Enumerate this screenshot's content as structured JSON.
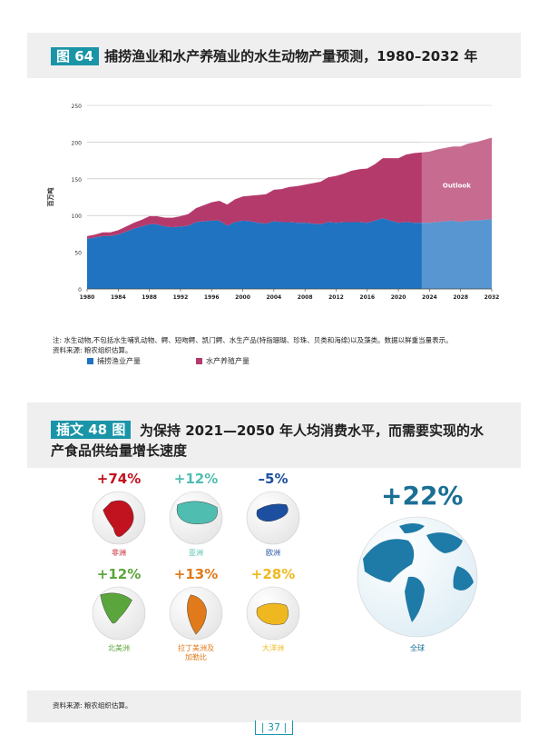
{
  "figure64": {
    "tag": "图 64",
    "title": "捕捞渔业和水产养殖业的水生动物产量预测，1980–2032 年",
    "note": "注: 水生动物,不包括水生哺乳动物、鳄、短吻鳄、凯门鳄、水生产品(特指珊瑚、珍珠、贝类和海绵)以及藻类。数据以鲜重当量表示。",
    "source": "资料来源: 粮农组织估算。"
  },
  "chart_data": {
    "type": "area",
    "title": "捕捞渔业和水产养殖业的水生动物产量预测，1980–2032 年",
    "ylabel": "百万吨",
    "ylim": [
      0,
      250
    ],
    "yticks": [
      0,
      50,
      100,
      150,
      200,
      250
    ],
    "xticks": [
      1980,
      1984,
      1988,
      1992,
      1996,
      2000,
      2004,
      2008,
      2012,
      2016,
      2020,
      2024,
      2028,
      2032
    ],
    "xlim": [
      1980,
      2032
    ],
    "stacked": true,
    "outlook_label": "Outlook",
    "outlook_start": 2023,
    "x": [
      1980,
      1981,
      1982,
      1983,
      1984,
      1985,
      1986,
      1987,
      1988,
      1989,
      1990,
      1991,
      1992,
      1993,
      1994,
      1995,
      1996,
      1997,
      1998,
      1999,
      2000,
      2001,
      2002,
      2003,
      2004,
      2005,
      2006,
      2007,
      2008,
      2009,
      2010,
      2011,
      2012,
      2013,
      2014,
      2015,
      2016,
      2017,
      2018,
      2019,
      2020,
      2021,
      2022,
      2023,
      2024,
      2025,
      2026,
      2027,
      2028,
      2029,
      2030,
      2031,
      2032
    ],
    "series": [
      {
        "name": "捕捞渔业产量",
        "color": "#1f73c0",
        "values": [
          68,
          70,
          72,
          72,
          74,
          78,
          82,
          85,
          88,
          88,
          85,
          84,
          85,
          86,
          91,
          92,
          93,
          93,
          86,
          91,
          93,
          92,
          90,
          89,
          92,
          91,
          91,
          90,
          90,
          89,
          88,
          91,
          90,
          91,
          91,
          91,
          90,
          93,
          96,
          93,
          90,
          91,
          90,
          90,
          90,
          91,
          92,
          93,
          91,
          93,
          93,
          94,
          95
        ]
      },
      {
        "name": "水产养殖产量",
        "color": "#b53a6c",
        "values": [
          4,
          4,
          5,
          5,
          6,
          7,
          8,
          9,
          11,
          11,
          12,
          13,
          14,
          16,
          19,
          22,
          25,
          27,
          29,
          31,
          33,
          35,
          38,
          40,
          43,
          45,
          48,
          50,
          52,
          55,
          58,
          61,
          64,
          66,
          70,
          72,
          74,
          77,
          82,
          85,
          88,
          92,
          95,
          96,
          97,
          99,
          100,
          101,
          103,
          105,
          107,
          109,
          111
        ]
      }
    ]
  },
  "figure48": {
    "tag": "插文 48 图",
    "title": "为保持 2021—2050 年人均消费水平，而需要实现的水产食品供给量增长速度",
    "source": "资料来源: 粮农组织估算。",
    "regions": [
      {
        "name": "非洲",
        "pct": "+74%",
        "color": "#c1121f",
        "icon": "africa-globe"
      },
      {
        "name": "亚洲",
        "pct": "+12%",
        "color": "#4fbdb0",
        "icon": "asia-globe"
      },
      {
        "name": "欧洲",
        "pct": "–5%",
        "color": "#1c4fa0",
        "icon": "europe-globe"
      },
      {
        "name": "北美洲",
        "pct": "+12%",
        "color": "#5aa63c",
        "icon": "north-america-globe"
      },
      {
        "name": "拉丁美洲及\n加勒比",
        "pct": "+13%",
        "color": "#e07a1a",
        "icon": "latin-america-globe"
      },
      {
        "name": "大洋洲",
        "pct": "+28%",
        "color": "#f0b820",
        "icon": "oceania-globe"
      },
      {
        "name": "全球",
        "pct": "+22%",
        "color": "#1a6f96",
        "icon": "world-globe"
      }
    ]
  },
  "page": {
    "number": "| 37 |"
  }
}
